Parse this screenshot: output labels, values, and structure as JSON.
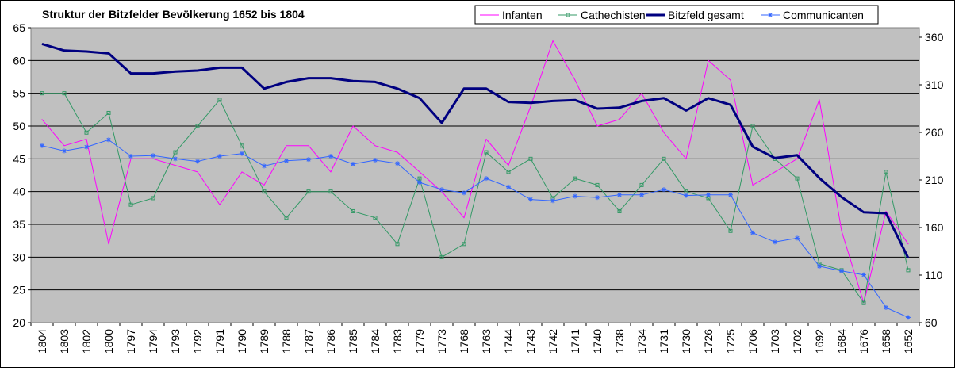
{
  "chart_data": {
    "type": "line",
    "title": "Struktur der Bitzfelder Bevölkerung 1652 bis 1804",
    "xlabel": "",
    "ylabel": "",
    "categories": [
      "1804",
      "1803",
      "1802",
      "1800",
      "1797",
      "1794",
      "1793",
      "1792",
      "1791",
      "1790",
      "1789",
      "1788",
      "1787",
      "1786",
      "1785",
      "1784",
      "1783",
      "1779",
      "1773",
      "1768",
      "1763",
      "1744",
      "1743",
      "1742",
      "1741",
      "1740",
      "1738",
      "1734",
      "1731",
      "1730",
      "1726",
      "1725",
      "1706",
      "1703",
      "1702",
      "1692",
      "1684",
      "1676",
      "1658",
      "1652"
    ],
    "y_left": {
      "ylim": [
        20,
        65
      ],
      "ticks": [
        "20",
        "25",
        "30",
        "35",
        "40",
        "45",
        "50",
        "55",
        "60",
        "65"
      ]
    },
    "y_right": {
      "ylim": [
        60,
        370
      ],
      "ticks": [
        "60",
        "110",
        "160",
        "210",
        "260",
        "310",
        "360"
      ]
    },
    "grid": true,
    "legend_position": "top-right",
    "plot_background": "#c0c0c0",
    "series": [
      {
        "name": "Infanten",
        "axis": "left",
        "color": "#ff00ff",
        "width": 1,
        "marker": "none",
        "values": [
          51,
          47,
          48,
          32,
          45,
          45,
          44,
          43,
          38,
          43,
          41,
          47,
          47,
          43,
          50,
          47,
          46,
          43,
          40,
          36,
          48,
          44,
          53,
          63,
          57,
          50,
          51,
          55,
          49,
          45,
          60,
          57,
          41,
          43,
          45,
          54,
          34,
          23,
          37,
          32
        ]
      },
      {
        "name": "Cathechisten",
        "axis": "left",
        "color": "#339966",
        "width": 1,
        "marker": "square",
        "values": [
          55,
          55,
          49,
          52,
          38,
          39,
          46,
          50,
          54,
          47,
          40,
          36,
          40,
          40,
          37,
          36,
          32,
          42,
          30,
          32,
          46,
          43,
          45,
          39,
          42,
          41,
          37,
          41,
          45,
          40,
          39,
          34,
          50,
          45,
          42,
          29,
          28,
          23,
          43,
          28
        ]
      },
      {
        "name": "Bitzfeld gesamt",
        "axis": "right",
        "color": "#000080",
        "width": 3,
        "marker": "none",
        "values": [
          353,
          346,
          345,
          343,
          322,
          322,
          324,
          325,
          328,
          328,
          306,
          313,
          317,
          317,
          314,
          313,
          306,
          296,
          270,
          306,
          306,
          292,
          291,
          293,
          294,
          285,
          286,
          293,
          296,
          283,
          296,
          289,
          245,
          233,
          236,
          212,
          192,
          176,
          175,
          128
        ]
      },
      {
        "name": "Communicanten",
        "axis": "left",
        "color": "#3366ff",
        "width": 1,
        "marker": "star",
        "values": [
          47,
          46.2,
          46.8,
          47.9,
          45.4,
          45.5,
          45,
          44.6,
          45.4,
          45.8,
          43.9,
          44.7,
          44.9,
          45.4,
          44.2,
          44.8,
          44.3,
          41.4,
          40.3,
          39.8,
          42,
          40.7,
          38.8,
          38.6,
          39.3,
          39.1,
          39.5,
          39.5,
          40.3,
          39.4,
          39.5,
          39.5,
          33.7,
          32.3,
          32.9,
          28.6,
          27.9,
          27.3,
          22.3,
          20.8
        ]
      }
    ]
  }
}
